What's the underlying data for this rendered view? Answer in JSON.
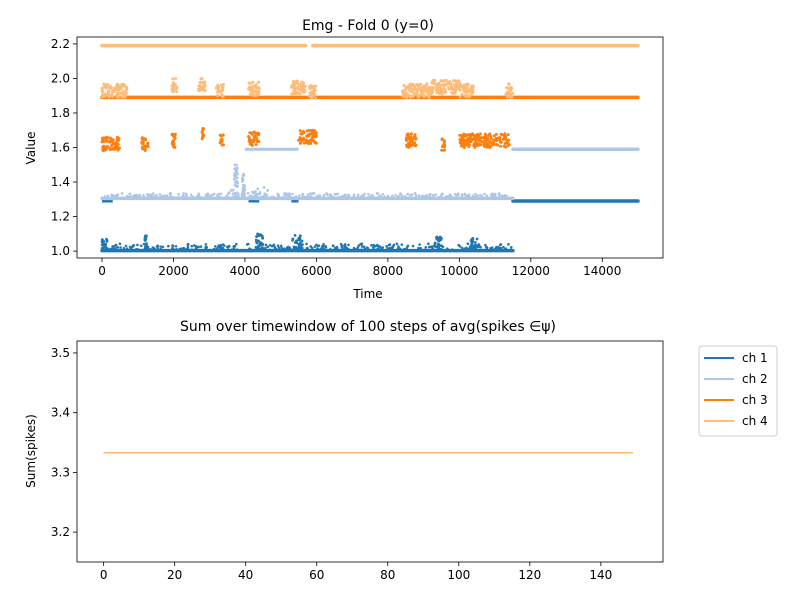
{
  "chart_data": [
    {
      "type": "scatter",
      "title": "Emg - Fold 0 (y=0)",
      "xlabel": "Time",
      "ylabel": "Value",
      "xlim": [
        -700,
        15700
      ],
      "ylim": [
        0.96,
        2.24
      ],
      "xticks": [
        0,
        2000,
        4000,
        6000,
        8000,
        10000,
        12000,
        14000
      ],
      "xtick_labels": [
        "0",
        "2000",
        "4000",
        "6000",
        "8000",
        "10000",
        "12000",
        "14000"
      ],
      "yticks": [
        1.0,
        1.2,
        1.4,
        1.6,
        1.8,
        2.0,
        2.2
      ],
      "ytick_labels": [
        "1.0",
        "1.2",
        "1.4",
        "1.6",
        "1.8",
        "2.0",
        "2.2"
      ],
      "grid": false,
      "series": [
        {
          "color": "#1f77b4",
          "segments": [
            {
              "x": [
                0,
                11500
              ],
              "baseline": 1.003,
              "jitter": 0.04
            },
            {
              "x": [
                11500,
                15000
              ],
              "baseline": 1.29,
              "jitter": 0.0
            }
          ],
          "bursts": [
            [
              0,
              150,
              1.07
            ],
            [
              4300,
              4500,
              1.1
            ],
            [
              5300,
              5600,
              1.1
            ],
            [
              9300,
              9500,
              1.09
            ],
            [
              10300,
              10500,
              1.08
            ],
            [
              1200,
              1250,
              1.09
            ]
          ],
          "baseline_segments": [
            [
              0,
              300,
              1.29
            ],
            [
              4100,
              4400,
              1.29
            ],
            [
              5300,
              5500,
              1.29
            ],
            [
              11500,
              15000,
              1.29
            ]
          ]
        },
        {
          "color": "#aec7e8",
          "segments": [
            {
              "x": [
                0,
                11500
              ],
              "baseline": 1.305,
              "jitter": 0.03
            },
            {
              "x": [
                11500,
                15000
              ],
              "baseline": 1.59,
              "jitter": 0.0
            }
          ],
          "bursts": [
            [
              3500,
              5300,
              1.37
            ],
            [
              3700,
              3800,
              1.5
            ],
            [
              3900,
              4000,
              1.45
            ]
          ],
          "baseline_segments": [
            [
              4000,
              5500,
              1.59
            ],
            [
              11500,
              15000,
              1.59
            ]
          ]
        },
        {
          "color": "#ff7f0e",
          "segments": [
            {
              "x": [
                0,
                15000
              ],
              "baseline": 1.89,
              "jitter": 0.0
            }
          ],
          "clusters": [
            [
              0,
              500,
              1.62
            ],
            [
              1100,
              1300,
              1.62
            ],
            [
              1950,
              2100,
              1.64
            ],
            [
              2800,
              2850,
              1.68
            ],
            [
              3300,
              3400,
              1.64
            ],
            [
              4100,
              4400,
              1.65
            ],
            [
              5500,
              6000,
              1.66
            ],
            [
              8500,
              8800,
              1.64
            ],
            [
              9500,
              9600,
              1.62
            ],
            [
              10000,
              11400,
              1.64
            ]
          ]
        },
        {
          "color": "#ffbb78",
          "segments": [
            {
              "x": [
                0,
                5700
              ],
              "baseline": 2.19,
              "jitter": 0.0
            },
            {
              "x": [
                5900,
                15000
              ],
              "baseline": 2.19,
              "jitter": 0.0
            }
          ],
          "clusters": [
            [
              0,
              700,
              1.93
            ],
            [
              1950,
              2100,
              1.96
            ],
            [
              2700,
              2900,
              1.96
            ],
            [
              3200,
              3400,
              1.93
            ],
            [
              4100,
              4400,
              1.94
            ],
            [
              5300,
              5700,
              1.95
            ],
            [
              5800,
              6000,
              1.92
            ],
            [
              8400,
              9200,
              1.93
            ],
            [
              9200,
              10000,
              1.95
            ],
            [
              10000,
              10400,
              1.93
            ],
            [
              11300,
              11500,
              1.93
            ]
          ]
        }
      ]
    },
    {
      "type": "line",
      "title": "Sum over timewindow of 100 steps of avg(spikes ∈ψ)",
      "xlabel": "",
      "ylabel": "Sum(spikes)",
      "xlim": [
        -7.5,
        157.5
      ],
      "ylim": [
        3.15,
        3.52
      ],
      "xticks": [
        0,
        20,
        40,
        60,
        80,
        100,
        120,
        140
      ],
      "xtick_labels": [
        "0",
        "20",
        "40",
        "60",
        "80",
        "100",
        "120",
        "140"
      ],
      "yticks": [
        3.2,
        3.3,
        3.4,
        3.5
      ],
      "ytick_labels": [
        "3.2",
        "3.3",
        "3.4",
        "3.5"
      ],
      "grid": false,
      "legend_position": "outside-right",
      "series": [
        {
          "name": "ch 1",
          "color": "#1f77b4",
          "x": [
            0,
            149
          ],
          "y": [
            3.333,
            3.333
          ]
        },
        {
          "name": "ch 2",
          "color": "#aec7e8",
          "x": [
            0,
            149
          ],
          "y": [
            3.333,
            3.333
          ]
        },
        {
          "name": "ch 3",
          "color": "#ff7f0e",
          "x": [
            0,
            149
          ],
          "y": [
            3.333,
            3.333
          ]
        },
        {
          "name": "ch 4",
          "color": "#ffbb78",
          "x": [
            0,
            149
          ],
          "y": [
            3.333,
            3.333
          ]
        }
      ]
    }
  ]
}
